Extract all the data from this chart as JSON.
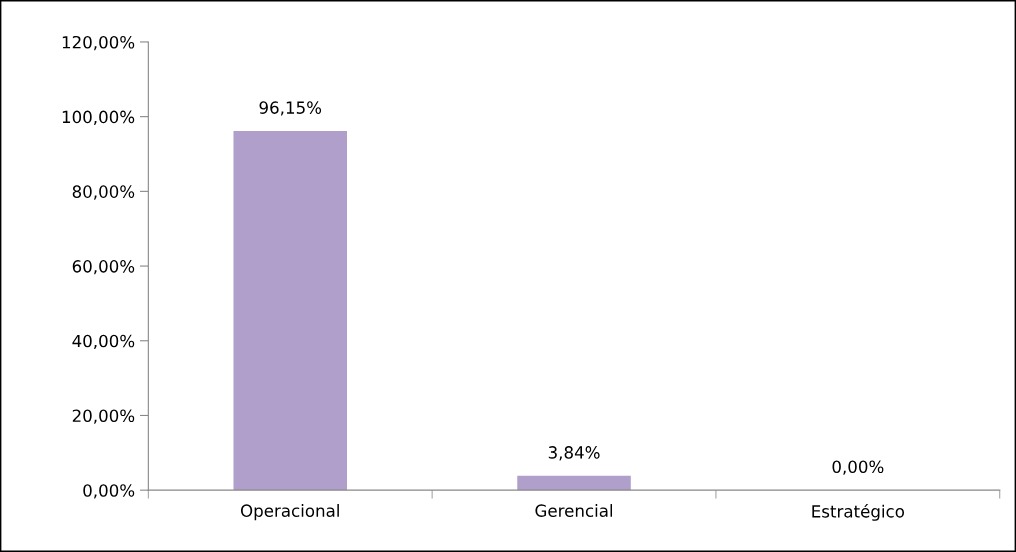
{
  "chart_data": {
    "type": "bar",
    "categories": [
      "Operacional",
      "Gerencial",
      "Estratégico"
    ],
    "values": [
      96.15,
      3.84,
      0.0
    ],
    "color": "#b09fca",
    "value_labels": [
      "96,15%",
      "3,84%",
      "0,00%"
    ],
    "ylim": [
      0,
      120
    ],
    "yticks": [
      {
        "value": 0,
        "label": "0,00%"
      },
      {
        "value": 20,
        "label": "20,00%"
      },
      {
        "value": 40,
        "label": "40,00%"
      },
      {
        "value": 60,
        "label": "60,00%"
      },
      {
        "value": 80,
        "label": "80,00%"
      },
      {
        "value": 100,
        "label": "100,00%"
      },
      {
        "value": 120,
        "label": "120,00%"
      }
    ],
    "grid": false,
    "legend": false
  }
}
